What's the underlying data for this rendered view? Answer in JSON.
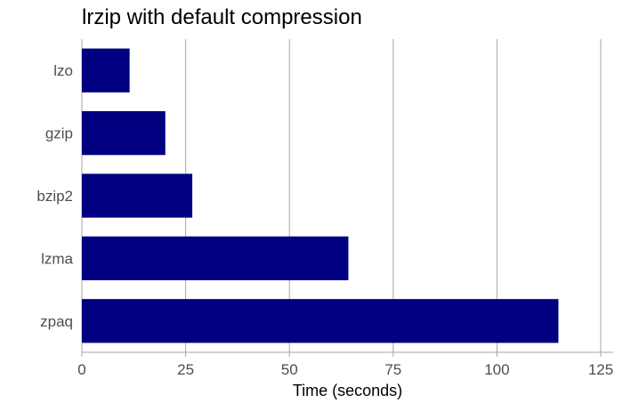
{
  "chart_data": {
    "type": "bar",
    "orientation": "horizontal",
    "title": "lrzip with default compression",
    "xlabel": "Time (seconds)",
    "ylabel": "",
    "categories": [
      "lzo",
      "gzip",
      "bzip2",
      "lzma",
      "zpaq"
    ],
    "values": [
      11.5,
      20.1,
      26.6,
      64.2,
      114.8
    ],
    "xlim": [
      0,
      128
    ],
    "xticks": [
      "0",
      "25",
      "50",
      "75",
      "100",
      "125"
    ],
    "grid": "vertical major lines",
    "legend": "none",
    "bar_color": "#000080"
  }
}
